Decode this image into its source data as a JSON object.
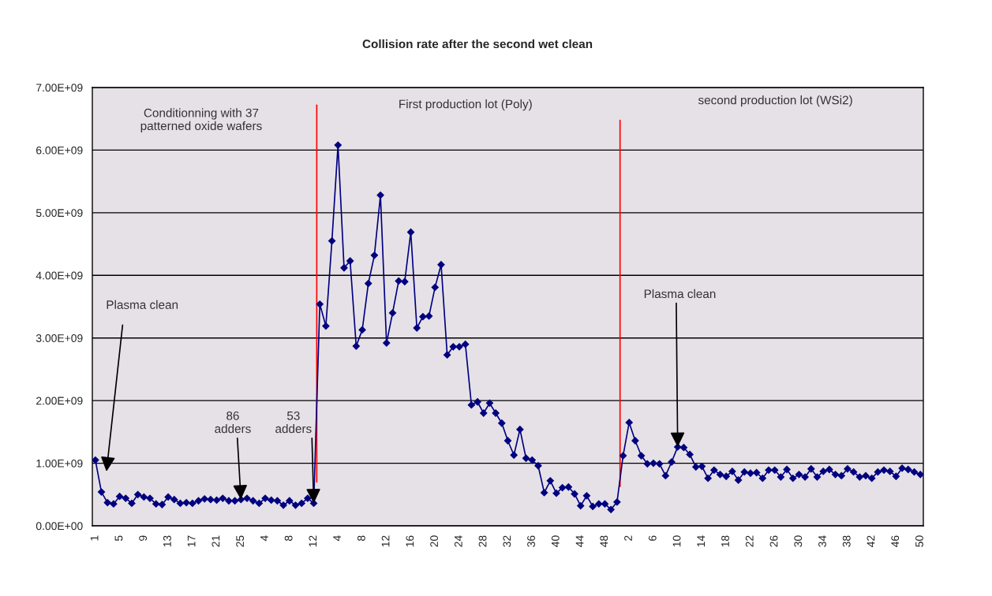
{
  "chart_data": {
    "type": "line",
    "title": "Collision rate after the second wet clean",
    "categories": [
      "1",
      null,
      null,
      null,
      "5",
      null,
      null,
      null,
      "9",
      null,
      null,
      null,
      "13",
      null,
      null,
      null,
      "17",
      null,
      null,
      null,
      "21",
      null,
      null,
      null,
      "25",
      null,
      null,
      null,
      "4",
      null,
      null,
      null,
      "8",
      null,
      null,
      null,
      "12",
      null,
      null,
      null,
      "4",
      null,
      null,
      null,
      "8",
      null,
      null,
      null,
      "12",
      null,
      null,
      null,
      "16",
      null,
      null,
      null,
      "20",
      null,
      null,
      null,
      "24",
      null,
      null,
      null,
      "28",
      null,
      null,
      null,
      "32",
      null,
      null,
      null,
      "36",
      null,
      null,
      null,
      "40",
      null,
      null,
      null,
      "44",
      null,
      null,
      null,
      "48",
      null,
      null,
      null,
      "2",
      null,
      null,
      null,
      "6",
      null,
      null,
      null,
      "10",
      null,
      null,
      null,
      "14",
      null,
      null,
      null,
      "18",
      null,
      null,
      null,
      "22",
      null,
      null,
      null,
      "26",
      null,
      null,
      null,
      "30",
      null,
      null,
      null,
      "34",
      null,
      null,
      null,
      "38",
      null,
      null,
      null,
      "42",
      null,
      null,
      null,
      "46",
      null,
      null,
      null,
      "50"
    ],
    "series": [
      {
        "color": "#000080",
        "values": [
          1050000000.0,
          540000000.0,
          370000000.0,
          350000000.0,
          470000000.0,
          440000000.0,
          360000000.0,
          500000000.0,
          460000000.0,
          440000000.0,
          350000000.0,
          340000000.0,
          460000000.0,
          420000000.0,
          360000000.0,
          370000000.0,
          360000000.0,
          400000000.0,
          430000000.0,
          420000000.0,
          410000000.0,
          440000000.0,
          400000000.0,
          400000000.0,
          420000000.0,
          440000000.0,
          400000000.0,
          360000000.0,
          440000000.0,
          410000000.0,
          400000000.0,
          330000000.0,
          400000000.0,
          330000000.0,
          360000000.0,
          440000000.0,
          360000000.0,
          3540000000.0,
          3190000000.0,
          4550000000.0,
          6080000000.0,
          4120000000.0,
          4230000000.0,
          2870000000.0,
          3130000000.0,
          3870000000.0,
          4320000000.0,
          5280000000.0,
          2920000000.0,
          3400000000.0,
          3910000000.0,
          3900000000.0,
          4690000000.0,
          3160000000.0,
          3340000000.0,
          3350000000.0,
          3810000000.0,
          4170000000.0,
          2730000000.0,
          2860000000.0,
          2860000000.0,
          2900000000.0,
          1930000000.0,
          1980000000.0,
          1800000000.0,
          1960000000.0,
          1800000000.0,
          1640000000.0,
          1360000000.0,
          1130000000.0,
          1540000000.0,
          1080000000.0,
          1050000000.0,
          960000000.0,
          530000000.0,
          720000000.0,
          520000000.0,
          610000000.0,
          620000000.0,
          510000000.0,
          320000000.0,
          480000000.0,
          310000000.0,
          350000000.0,
          350000000.0,
          260000000.0,
          380000000.0,
          1120000000.0,
          1650000000.0,
          1360000000.0,
          1120000000.0,
          990000000.0,
          1000000000.0,
          990000000.0,
          800000000.0,
          1020000000.0,
          1260000000.0,
          1250000000.0,
          1140000000.0,
          940000000.0,
          950000000.0,
          760000000.0,
          890000000.0,
          820000000.0,
          790000000.0,
          870000000.0,
          730000000.0,
          860000000.0,
          840000000.0,
          850000000.0,
          760000000.0,
          890000000.0,
          890000000.0,
          780000000.0,
          900000000.0,
          760000000.0,
          820000000.0,
          780000000.0,
          910000000.0,
          780000000.0,
          870000000.0,
          900000000.0,
          820000000.0,
          800000000.0,
          910000000.0,
          860000000.0,
          780000000.0,
          800000000.0,
          760000000.0,
          860000000.0,
          890000000.0,
          870000000.0,
          790000000.0,
          920000000.0,
          900000000.0,
          860000000.0,
          820000000.0
        ]
      }
    ],
    "ylim": [
      0,
      7000000000.0
    ],
    "yticks": [
      {
        "value": 0,
        "label": "0.00E+00"
      },
      {
        "value": 1000000000.0,
        "label": "1.00E+09"
      },
      {
        "value": 2000000000.0,
        "label": "2.00E+09"
      },
      {
        "value": 3000000000.0,
        "label": "3.00E+09"
      },
      {
        "value": 4000000000.0,
        "label": "4.00E+09"
      },
      {
        "value": 5000000000.0,
        "label": "5.00E+09"
      },
      {
        "value": 6000000000.0,
        "label": "6.00E+09"
      },
      {
        "value": 7000000000.0,
        "label": "7.00E+09"
      }
    ],
    "annotations": [
      "Conditionning with 37\npatterned oxide wafers",
      "First production lot (Poly)",
      "second production lot (WSi2)",
      "Plasma clean",
      {
        "text": "86\nadders",
        "x": "25",
        "y": 420000000.0
      },
      {
        "text": "53\nadders",
        "x": "12",
        "y": 360000000.0
      },
      {
        "text": "Plasma clean",
        "x": "10",
        "y": 1260000000.0
      }
    ],
    "grid": "y",
    "marker": "diamond",
    "line_style": "solid"
  }
}
